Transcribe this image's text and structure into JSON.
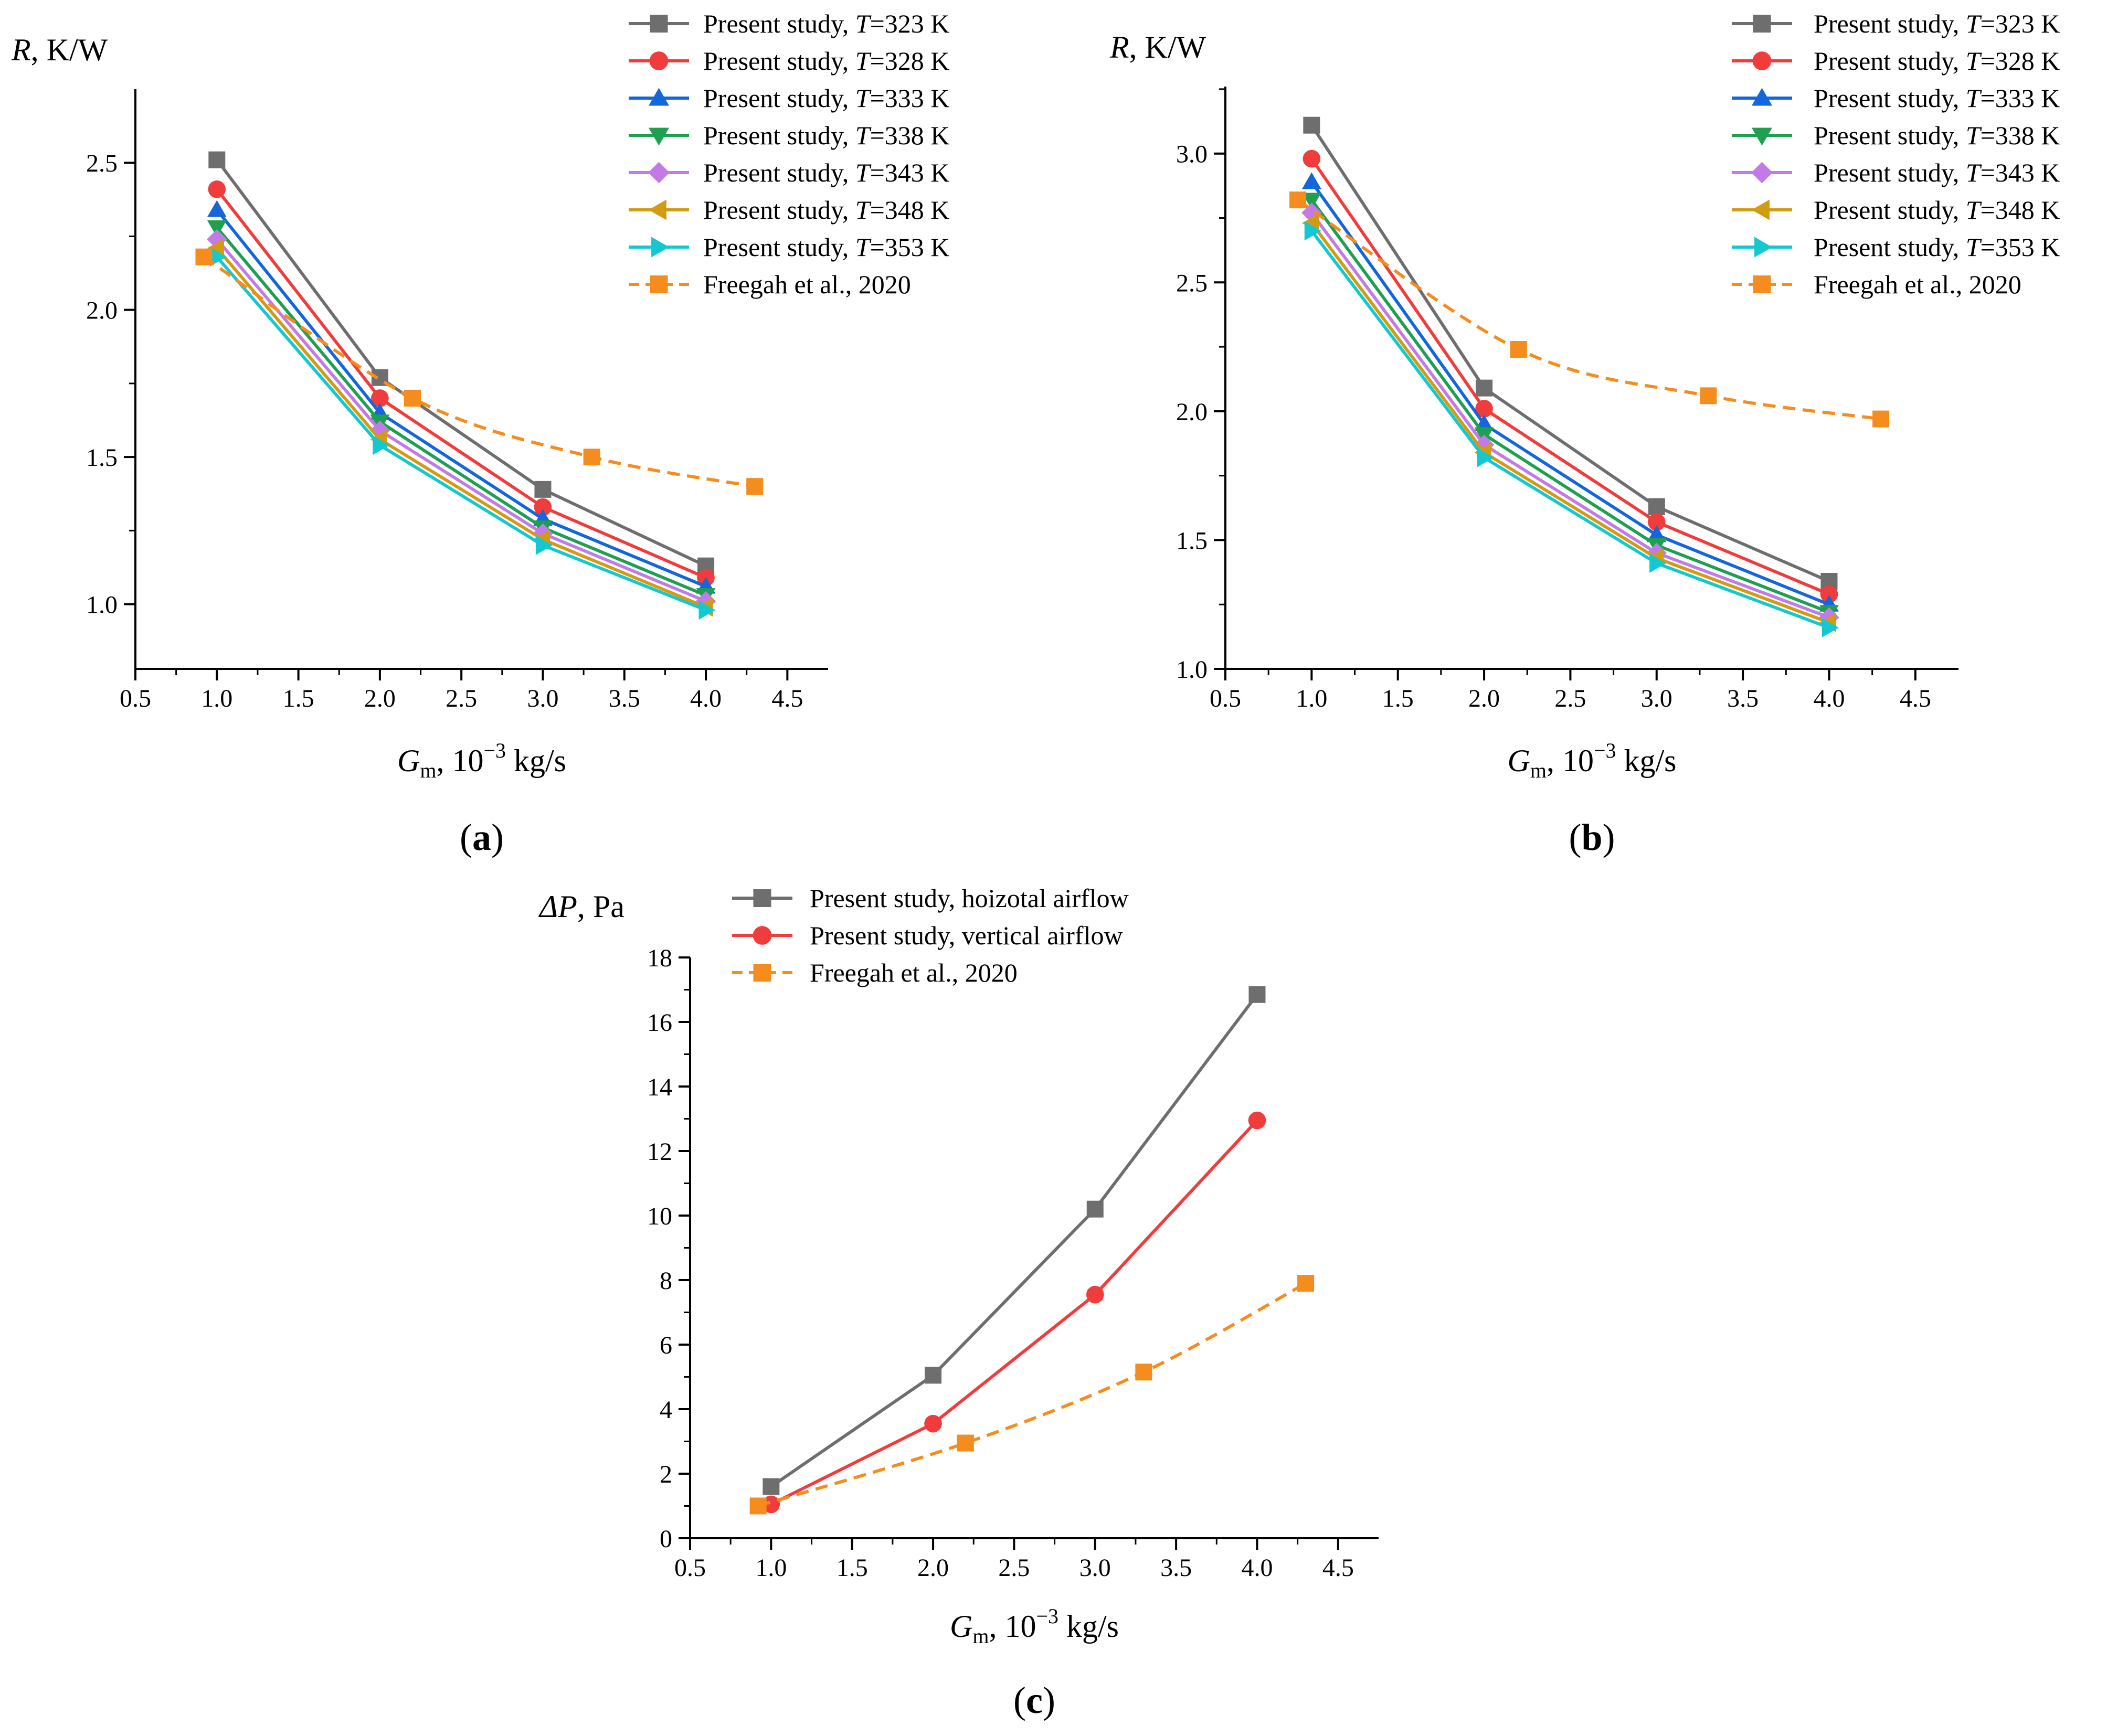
{
  "figure": {
    "x_unit_text": ", 10",
    "x_unit_exp": "−3",
    "x_unit_tail": " kg/s"
  },
  "colors": {
    "axis": "#000000",
    "s323": "#6e6e6e",
    "s328": "#f03c3c",
    "s333": "#1466dc",
    "s338": "#1ea050",
    "s343": "#c27be6",
    "s348": "#d19b12",
    "s353": "#14c8d2",
    "freegah": "#f58c1e"
  },
  "chart_data": [
    {
      "type": "line",
      "panel_label": "a",
      "title": "",
      "xlabel_var": "G",
      "xlabel_sub": "m",
      "ylabel_var": "R",
      "ylabel_unit": ", K/W",
      "xlim": [
        0.5,
        4.75
      ],
      "ylim": [
        0.78,
        2.75
      ],
      "xticks": [
        "0.5",
        "1.0",
        "1.5",
        "2.0",
        "2.5",
        "3.0",
        "3.5",
        "4.0",
        "4.5"
      ],
      "yticks": [
        "1.0",
        "1.5",
        "2.0",
        "2.5"
      ],
      "legend_position": "top-right",
      "series": [
        {
          "name": "Present study, T=323 K",
          "name_prefix": "Present study, ",
          "name_var": "T",
          "name_value": "=323 K",
          "color_key": "s323",
          "marker": "square",
          "dash": false,
          "x": [
            1,
            2,
            3,
            4
          ],
          "y": [
            2.51,
            1.77,
            1.39,
            1.13
          ]
        },
        {
          "name": "Present study, T=328 K",
          "name_prefix": "Present study, ",
          "name_var": "T",
          "name_value": "=328 K",
          "color_key": "s328",
          "marker": "circle",
          "dash": false,
          "x": [
            1,
            2,
            3,
            4
          ],
          "y": [
            2.41,
            1.7,
            1.33,
            1.09
          ]
        },
        {
          "name": "Present study, T=333 K",
          "name_prefix": "Present study, ",
          "name_var": "T",
          "name_value": "=333 K",
          "color_key": "s333",
          "marker": "triangle-up",
          "dash": false,
          "x": [
            1,
            2,
            3,
            4
          ],
          "y": [
            2.34,
            1.65,
            1.29,
            1.06
          ]
        },
        {
          "name": "Present study, T=338 K",
          "name_prefix": "Present study, ",
          "name_var": "T",
          "name_value": "=338 K",
          "color_key": "s338",
          "marker": "triangle-down",
          "dash": false,
          "x": [
            1,
            2,
            3,
            4
          ],
          "y": [
            2.28,
            1.62,
            1.26,
            1.03
          ]
        },
        {
          "name": "Present study, T=343 K",
          "name_prefix": "Present study, ",
          "name_var": "T",
          "name_value": "=343 K",
          "color_key": "s343",
          "marker": "diamond",
          "dash": false,
          "x": [
            1,
            2,
            3,
            4
          ],
          "y": [
            2.24,
            1.59,
            1.24,
            1.01
          ]
        },
        {
          "name": "Present study, T=348 K",
          "name_prefix": "Present study, ",
          "name_var": "T",
          "name_value": "=348 K",
          "color_key": "s348",
          "marker": "triangle-left",
          "dash": false,
          "x": [
            1,
            2,
            3,
            4
          ],
          "y": [
            2.21,
            1.56,
            1.22,
            0.99
          ]
        },
        {
          "name": "Present study, T=353 K",
          "name_prefix": "Present study, ",
          "name_var": "T",
          "name_value": "=353 K",
          "color_key": "s353",
          "marker": "triangle-right",
          "dash": false,
          "x": [
            1,
            2,
            3,
            4
          ],
          "y": [
            2.18,
            1.54,
            1.2,
            0.98
          ]
        },
        {
          "name": "Freegah et al., 2020",
          "name_prefix": "Freegah et al., 2020",
          "name_var": "",
          "name_value": "",
          "color_key": "freegah",
          "marker": "square",
          "dash": true,
          "x": [
            0.92,
            2.2,
            3.3,
            4.3
          ],
          "y": [
            2.18,
            1.7,
            1.5,
            1.4
          ]
        }
      ]
    },
    {
      "type": "line",
      "panel_label": "b",
      "title": "",
      "xlabel_var": "G",
      "xlabel_sub": "m",
      "ylabel_var": "R",
      "ylabel_unit": ", K/W",
      "xlim": [
        0.5,
        4.75
      ],
      "ylim": [
        1.0,
        3.26
      ],
      "xticks": [
        "0.5",
        "1.0",
        "1.5",
        "2.0",
        "2.5",
        "3.0",
        "3.5",
        "4.0",
        "4.5"
      ],
      "yticks": [
        "1.0",
        "1.5",
        "2.0",
        "2.5",
        "3.0"
      ],
      "legend_position": "top-right",
      "series": [
        {
          "name": "Present study, T=323 K",
          "name_prefix": "Present study, ",
          "name_var": "T",
          "name_value": "=323 K",
          "color_key": "s323",
          "marker": "square",
          "dash": false,
          "x": [
            1,
            2,
            3,
            4
          ],
          "y": [
            3.11,
            2.09,
            1.63,
            1.34
          ]
        },
        {
          "name": "Present study, T=328 K",
          "name_prefix": "Present study, ",
          "name_var": "T",
          "name_value": "=328 K",
          "color_key": "s328",
          "marker": "circle",
          "dash": false,
          "x": [
            1,
            2,
            3,
            4
          ],
          "y": [
            2.98,
            2.01,
            1.57,
            1.29
          ]
        },
        {
          "name": "Present study, T=333 K",
          "name_prefix": "Present study, ",
          "name_var": "T",
          "name_value": "=333 K",
          "color_key": "s333",
          "marker": "triangle-up",
          "dash": false,
          "x": [
            1,
            2,
            3,
            4
          ],
          "y": [
            2.89,
            1.95,
            1.52,
            1.25
          ]
        },
        {
          "name": "Present study, T=338 K",
          "name_prefix": "Present study, ",
          "name_var": "T",
          "name_value": "=338 K",
          "color_key": "s338",
          "marker": "triangle-down",
          "dash": false,
          "x": [
            1,
            2,
            3,
            4
          ],
          "y": [
            2.82,
            1.91,
            1.48,
            1.22
          ]
        },
        {
          "name": "Present study, T=343 K",
          "name_prefix": "Present study, ",
          "name_var": "T",
          "name_value": "=343 K",
          "color_key": "s343",
          "marker": "diamond",
          "dash": false,
          "x": [
            1,
            2,
            3,
            4
          ],
          "y": [
            2.77,
            1.87,
            1.45,
            1.2
          ]
        },
        {
          "name": "Present study, T=348 K",
          "name_prefix": "Present study, ",
          "name_var": "T",
          "name_value": "=348 K",
          "color_key": "s348",
          "marker": "triangle-left",
          "dash": false,
          "x": [
            1,
            2,
            3,
            4
          ],
          "y": [
            2.73,
            1.84,
            1.43,
            1.18
          ]
        },
        {
          "name": "Present study, T=353 K",
          "name_prefix": "Present study, ",
          "name_var": "T",
          "name_value": "=353 K",
          "color_key": "s353",
          "marker": "triangle-right",
          "dash": false,
          "x": [
            1,
            2,
            3,
            4
          ],
          "y": [
            2.7,
            1.82,
            1.41,
            1.16
          ]
        },
        {
          "name": "Freegah et al., 2020",
          "name_prefix": "Freegah et al., 2020",
          "name_var": "",
          "name_value": "",
          "color_key": "freegah",
          "marker": "square",
          "dash": true,
          "x": [
            0.92,
            2.2,
            3.3,
            4.3
          ],
          "y": [
            2.82,
            2.24,
            2.06,
            1.97
          ]
        }
      ]
    },
    {
      "type": "line",
      "panel_label": "c",
      "title": "",
      "xlabel_var": "G",
      "xlabel_sub": "m",
      "ylabel_var": "ΔP",
      "ylabel_unit": ", Pa",
      "xlim": [
        0.5,
        4.75
      ],
      "ylim": [
        0,
        18
      ],
      "xticks": [
        "0.5",
        "1.0",
        "1.5",
        "2.0",
        "2.5",
        "3.0",
        "3.5",
        "4.0",
        "4.5"
      ],
      "yticks": [
        "0",
        "2",
        "4",
        "6",
        "8",
        "10",
        "12",
        "14",
        "16",
        "18"
      ],
      "legend_position": "top-left",
      "series": [
        {
          "name": "Present study, hoizotal airflow",
          "name_prefix": "Present study, hoizotal airflow",
          "name_var": "",
          "name_value": "",
          "color_key": "s323",
          "marker": "square",
          "dash": false,
          "x": [
            1,
            2,
            3,
            4
          ],
          "y": [
            1.6,
            5.05,
            10.2,
            16.85
          ]
        },
        {
          "name": "Present study, vertical airflow",
          "name_prefix": "Present study, vertical airflow",
          "name_var": "",
          "name_value": "",
          "color_key": "s328",
          "marker": "circle",
          "dash": false,
          "x": [
            1,
            2,
            3,
            4
          ],
          "y": [
            1.05,
            3.55,
            7.55,
            12.95
          ]
        },
        {
          "name": "Freegah et al., 2020",
          "name_prefix": "Freegah et al., 2020",
          "name_var": "",
          "name_value": "",
          "color_key": "freegah",
          "marker": "square",
          "dash": true,
          "x": [
            0.92,
            2.2,
            3.3,
            4.3
          ],
          "y": [
            1.0,
            2.95,
            5.15,
            7.9
          ]
        }
      ]
    }
  ]
}
